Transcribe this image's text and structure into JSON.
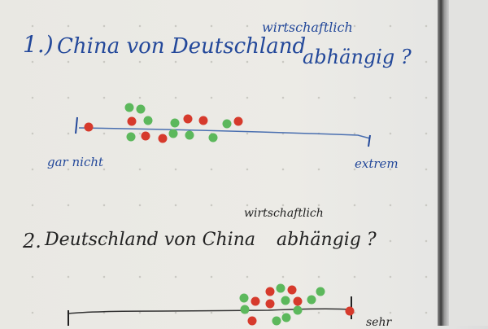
{
  "question1": {
    "number": "1.)",
    "text": "China von Deutschland",
    "insert": "wirtschaftlich",
    "tail": "abhängig ?",
    "scale_left": "gar nicht",
    "scale_right": "extrem"
  },
  "question2": {
    "number": "2.",
    "text": "Deutschland von China",
    "insert": "wirtschaftlich",
    "tail": "abhängig ?",
    "scale_right": "sehr"
  },
  "colors": {
    "ink_q1": "#23489a",
    "ink_q2": "#222222",
    "dot_red": "#d63a2c",
    "dot_green": "#5cb85c"
  }
}
